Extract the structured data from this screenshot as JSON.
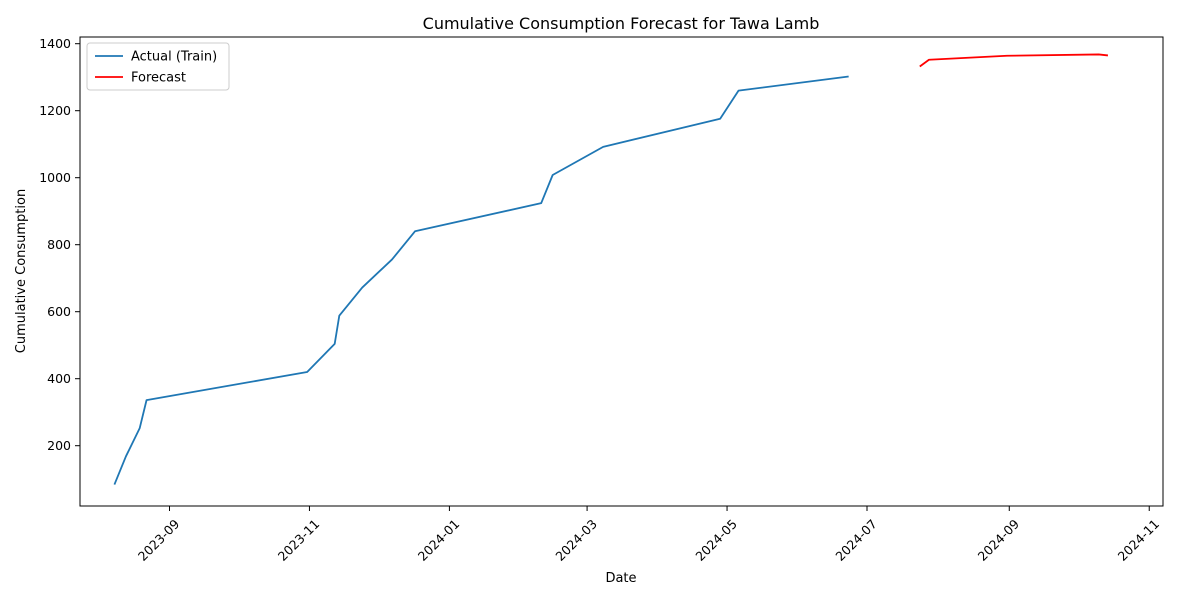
{
  "chart_data": {
    "type": "line",
    "title": "Cumulative Consumption Forecast for Tawa Lamb",
    "xlabel": "Date",
    "ylabel": "Cumulative Consumption",
    "x_axis_type": "date",
    "xlim": [
      "2023-07-24",
      "2024-11-07"
    ],
    "ylim": [
      20,
      1420
    ],
    "x_ticks": [
      "2023-09-01",
      "2023-11-01",
      "2024-01-01",
      "2024-03-01",
      "2024-05-01",
      "2024-07-01",
      "2024-09-01",
      "2024-11-01"
    ],
    "x_tick_labels": [
      "2023-09",
      "2023-11",
      "2024-01",
      "2024-03",
      "2024-05",
      "2024-07",
      "2024-09",
      "2024-11"
    ],
    "y_ticks": [
      200,
      400,
      600,
      800,
      1000,
      1200,
      1400
    ],
    "legend_position": "top-left",
    "grid": false,
    "series": [
      {
        "name": "Actual (Train)",
        "color": "#1f77b4",
        "points": [
          {
            "x": "2023-08-08",
            "y": 84
          },
          {
            "x": "2023-08-13",
            "y": 168
          },
          {
            "x": "2023-08-19",
            "y": 252
          },
          {
            "x": "2023-08-22",
            "y": 336
          },
          {
            "x": "2023-10-31",
            "y": 420
          },
          {
            "x": "2023-11-12",
            "y": 504
          },
          {
            "x": "2023-11-14",
            "y": 588
          },
          {
            "x": "2023-11-24",
            "y": 672
          },
          {
            "x": "2023-12-07",
            "y": 756
          },
          {
            "x": "2023-12-17",
            "y": 840
          },
          {
            "x": "2024-02-10",
            "y": 924
          },
          {
            "x": "2024-02-15",
            "y": 1008
          },
          {
            "x": "2024-03-08",
            "y": 1092
          },
          {
            "x": "2024-04-28",
            "y": 1176
          },
          {
            "x": "2024-05-06",
            "y": 1260
          },
          {
            "x": "2024-06-23",
            "y": 1302
          }
        ]
      },
      {
        "name": "Forecast",
        "color": "#ff0000",
        "points": [
          {
            "x": "2024-07-24",
            "y": 1332
          },
          {
            "x": "2024-07-28",
            "y": 1352
          },
          {
            "x": "2024-08-31",
            "y": 1364
          },
          {
            "x": "2024-10-10",
            "y": 1368
          },
          {
            "x": "2024-10-14",
            "y": 1365
          }
        ]
      }
    ]
  }
}
